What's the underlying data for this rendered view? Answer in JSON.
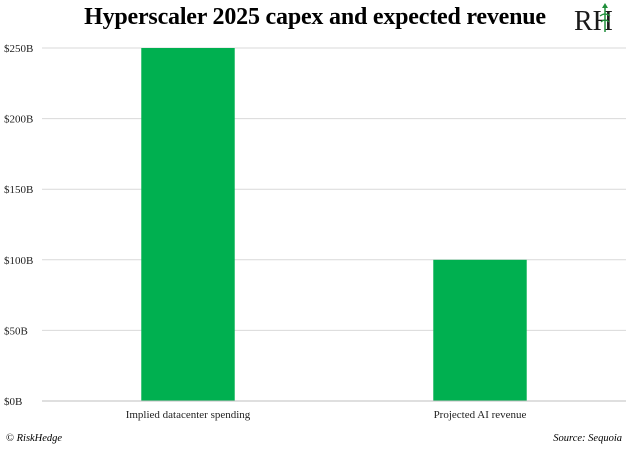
{
  "chart_data": {
    "type": "bar",
    "title": "Hyperscaler 2025 capex and expected revenue",
    "categories": [
      "Implied datacenter spending",
      "Projected AI revenue"
    ],
    "values": [
      250,
      100
    ],
    "ylim": [
      0,
      250
    ],
    "yticks": [
      0,
      50,
      100,
      150,
      200,
      250
    ],
    "ytick_labels": [
      "$0B",
      "$50B",
      "$100B",
      "$150B",
      "$200B",
      "$250B"
    ],
    "xlabel": "",
    "ylabel": "",
    "grid": true,
    "bar_color": "#00b050",
    "grid_color": "#d9d9d9"
  },
  "logo": {
    "text": "RH"
  },
  "footer": {
    "copyright_symbol": "©",
    "brand": "RiskHedge",
    "source": "Source: Sequoia"
  }
}
